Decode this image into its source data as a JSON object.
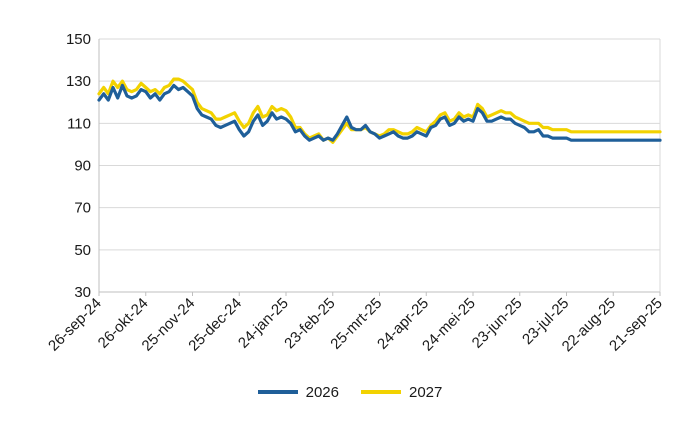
{
  "chart_data": {
    "type": "line",
    "title": "",
    "xlabel": "",
    "ylabel": "",
    "ylim": [
      30,
      150
    ],
    "yticks": [
      30,
      50,
      70,
      90,
      110,
      130,
      150
    ],
    "x_tick_labels": [
      "26-sep-24",
      "26-okt-24",
      "25-nov-24",
      "25-dec-24",
      "24-jan-25",
      "23-feb-25",
      "25-mrt-25",
      "24-apr-25",
      "24-mei-25",
      "23-jun-25",
      "23-jul-25",
      "22-aug-25",
      "21-sep-25"
    ],
    "x_range": [
      0,
      360
    ],
    "grid": "horizontal",
    "legend_position": "bottom",
    "x_days": [
      0,
      3,
      6,
      9,
      12,
      15,
      18,
      21,
      24,
      27,
      30,
      33,
      36,
      39,
      42,
      45,
      48,
      51,
      54,
      57,
      60,
      63,
      66,
      69,
      72,
      75,
      78,
      81,
      84,
      87,
      90,
      93,
      96,
      99,
      102,
      105,
      108,
      111,
      114,
      117,
      120,
      123,
      126,
      129,
      132,
      135,
      138,
      141,
      144,
      147,
      150,
      153,
      156,
      159,
      162,
      165,
      168,
      171,
      174,
      177,
      180,
      183,
      186,
      189,
      192,
      195,
      198,
      201,
      204,
      207,
      210,
      213,
      216,
      219,
      222,
      225,
      228,
      231,
      234,
      237,
      240,
      243,
      246,
      249,
      252,
      255,
      258,
      261,
      264,
      267,
      270,
      273,
      276,
      279,
      282,
      285,
      288,
      291,
      294,
      297,
      300,
      303,
      306,
      309,
      312,
      315,
      318,
      321,
      324,
      327,
      330,
      333,
      336,
      339,
      342,
      345,
      348,
      351,
      354,
      357,
      360
    ],
    "series": [
      {
        "name": "2026",
        "color": "#1f5f99",
        "values": [
          121,
          124,
          121,
          127,
          122,
          128,
          123,
          122,
          123,
          126,
          125,
          122,
          124,
          121,
          124,
          125,
          128,
          126,
          127,
          125,
          123,
          117,
          114,
          113,
          112,
          109,
          108,
          109,
          110,
          111,
          107,
          104,
          106,
          111,
          114,
          109,
          111,
          115,
          112,
          113,
          112,
          110,
          106,
          107,
          104,
          102,
          103,
          104,
          102,
          103,
          102,
          105,
          109,
          113,
          108,
          107,
          107,
          109,
          106,
          105,
          103,
          104,
          105,
          106,
          104,
          103,
          103,
          104,
          106,
          105,
          104,
          108,
          109,
          112,
          113,
          109,
          110,
          113,
          111,
          112,
          111,
          117,
          115,
          111,
          111,
          112,
          113,
          112,
          112,
          110,
          109,
          108,
          106,
          106,
          107,
          104,
          104,
          103,
          103,
          103,
          103,
          102,
          102,
          102,
          102,
          102,
          102,
          102,
          102,
          102,
          102,
          102,
          102,
          102,
          102,
          102,
          102,
          102,
          102,
          102,
          102
        ]
      },
      {
        "name": "2027",
        "color": "#f2d200",
        "values": [
          124,
          127,
          124,
          130,
          127,
          130,
          126,
          125,
          126,
          129,
          127,
          125,
          126,
          124,
          127,
          128,
          131,
          131,
          130,
          128,
          126,
          120,
          117,
          116,
          115,
          112,
          112,
          113,
          114,
          115,
          111,
          108,
          110,
          115,
          118,
          113,
          114,
          118,
          116,
          117,
          116,
          113,
          108,
          108,
          105,
          103,
          104,
          105,
          102,
          103,
          101,
          104,
          107,
          110,
          107,
          107,
          107,
          108,
          106,
          105,
          104,
          105,
          107,
          107,
          106,
          105,
          105,
          106,
          108,
          107,
          106,
          109,
          111,
          114,
          115,
          111,
          112,
          115,
          113,
          114,
          113,
          119,
          117,
          113,
          114,
          115,
          116,
          115,
          115,
          113,
          112,
          111,
          110,
          110,
          110,
          108,
          108,
          107,
          107,
          107,
          107,
          106,
          106,
          106,
          106,
          106,
          106,
          106,
          106,
          106,
          106,
          106,
          106,
          106,
          106,
          106,
          106,
          106,
          106,
          106,
          106
        ]
      }
    ]
  }
}
